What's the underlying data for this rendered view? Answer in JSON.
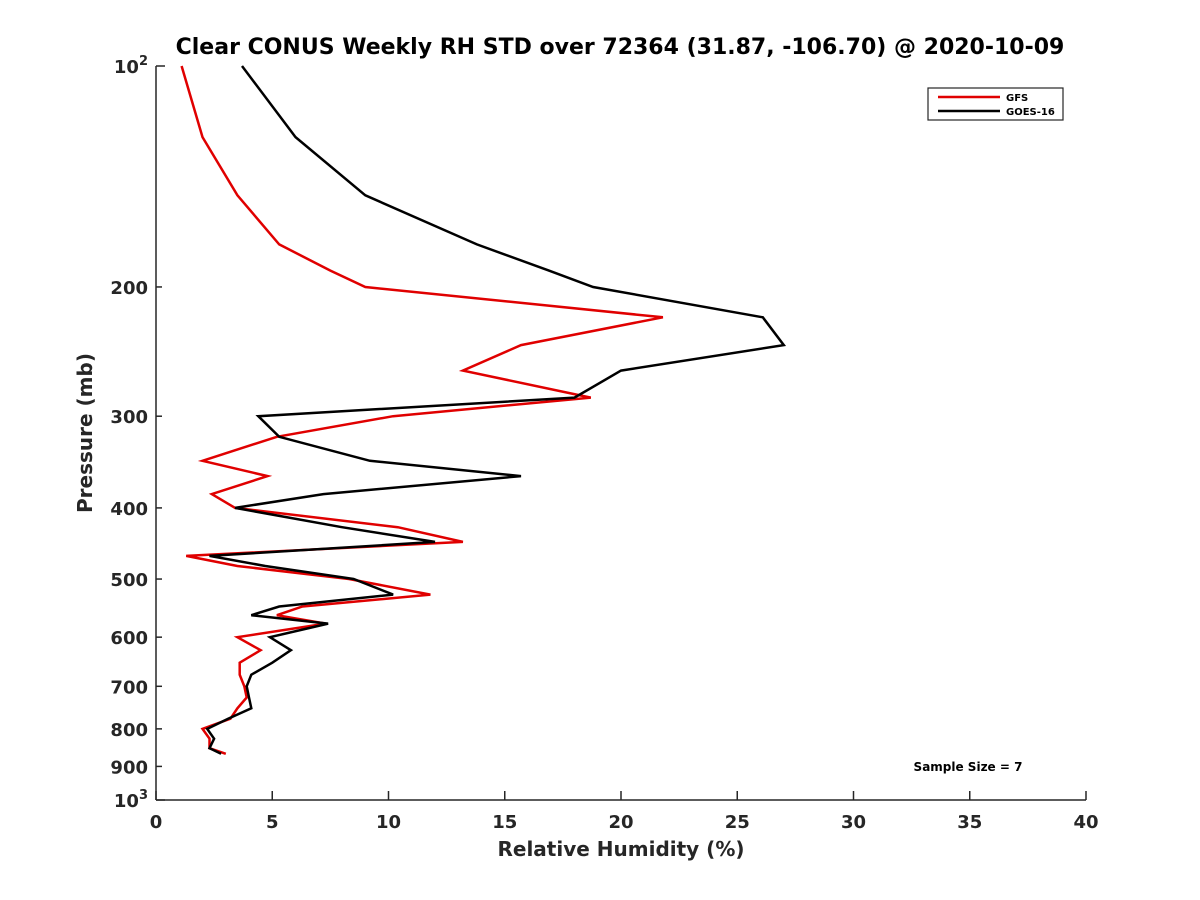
{
  "chart_data": {
    "type": "line",
    "title": "Clear CONUS Weekly RH STD over 72364 (31.87, -106.70) @ 2020-10-09",
    "xlabel": "Relative Humidity (%)",
    "ylabel": "Pressure (mb)",
    "xlim": [
      0,
      40
    ],
    "ylim": [
      100,
      1000
    ],
    "y_scale": "log",
    "y_reversed": true,
    "x_ticks": [
      "0",
      "5",
      "10",
      "15",
      "20",
      "25",
      "30",
      "35",
      "40"
    ],
    "y_ticks": [
      {
        "value": 200,
        "label": "200"
      },
      {
        "value": 300,
        "label": "300"
      },
      {
        "value": 400,
        "label": "400"
      },
      {
        "value": 500,
        "label": "500"
      },
      {
        "value": 600,
        "label": "600"
      },
      {
        "value": 700,
        "label": "700"
      },
      {
        "value": 800,
        "label": "800"
      },
      {
        "value": 900,
        "label": "900"
      }
    ],
    "y_power_ticks": [
      {
        "value": 100,
        "base": "10",
        "exp": "2"
      },
      {
        "value": 1000,
        "base": "10",
        "exp": "3"
      }
    ],
    "grid": false,
    "legend_position": "top-right",
    "annotation": "Sample Size = 7",
    "series": [
      {
        "name": "GFS",
        "color": "#e00000",
        "points": [
          [
            1.1,
            100
          ],
          [
            2.0,
            125
          ],
          [
            3.5,
            150
          ],
          [
            5.3,
            175
          ],
          [
            7.5,
            190
          ],
          [
            9.0,
            200
          ],
          [
            21.8,
            220
          ],
          [
            15.7,
            240
          ],
          [
            13.2,
            260
          ],
          [
            18.7,
            283
          ],
          [
            10.2,
            300
          ],
          [
            5.2,
            320
          ],
          [
            2.0,
            345
          ],
          [
            4.8,
            362
          ],
          [
            2.4,
            383
          ],
          [
            3.4,
            400
          ],
          [
            10.4,
            425
          ],
          [
            13.2,
            445
          ],
          [
            1.3,
            465
          ],
          [
            3.5,
            480
          ],
          [
            8.3,
            500
          ],
          [
            11.8,
            525
          ],
          [
            6.3,
            545
          ],
          [
            5.2,
            560
          ],
          [
            7.3,
            575
          ],
          [
            3.5,
            600
          ],
          [
            4.5,
            625
          ],
          [
            3.6,
            650
          ],
          [
            3.6,
            675
          ],
          [
            3.8,
            700
          ],
          [
            3.9,
            725
          ],
          [
            3.5,
            750
          ],
          [
            3.2,
            775
          ],
          [
            2.0,
            800
          ],
          [
            2.3,
            825
          ],
          [
            2.3,
            850
          ],
          [
            3.0,
            865
          ]
        ]
      },
      {
        "name": "GOES-16",
        "color": "#000000",
        "points": [
          [
            3.7,
            100
          ],
          [
            6.0,
            125
          ],
          [
            9.0,
            150
          ],
          [
            13.8,
            175
          ],
          [
            16.9,
            190
          ],
          [
            18.8,
            200
          ],
          [
            26.1,
            220
          ],
          [
            27.0,
            240
          ],
          [
            20.0,
            260
          ],
          [
            18.0,
            283
          ],
          [
            4.4,
            300
          ],
          [
            5.3,
            320
          ],
          [
            9.2,
            345
          ],
          [
            15.7,
            362
          ],
          [
            7.2,
            383
          ],
          [
            3.4,
            400
          ],
          [
            8.0,
            425
          ],
          [
            12.0,
            445
          ],
          [
            2.3,
            465
          ],
          [
            4.7,
            480
          ],
          [
            8.5,
            500
          ],
          [
            10.2,
            525
          ],
          [
            5.3,
            545
          ],
          [
            4.1,
            560
          ],
          [
            7.4,
            575
          ],
          [
            4.9,
            600
          ],
          [
            5.8,
            625
          ],
          [
            5.0,
            650
          ],
          [
            4.1,
            675
          ],
          [
            3.9,
            700
          ],
          [
            4.0,
            725
          ],
          [
            4.1,
            750
          ],
          [
            3.1,
            775
          ],
          [
            2.2,
            800
          ],
          [
            2.5,
            825
          ],
          [
            2.3,
            850
          ],
          [
            2.8,
            865
          ]
        ]
      }
    ]
  }
}
